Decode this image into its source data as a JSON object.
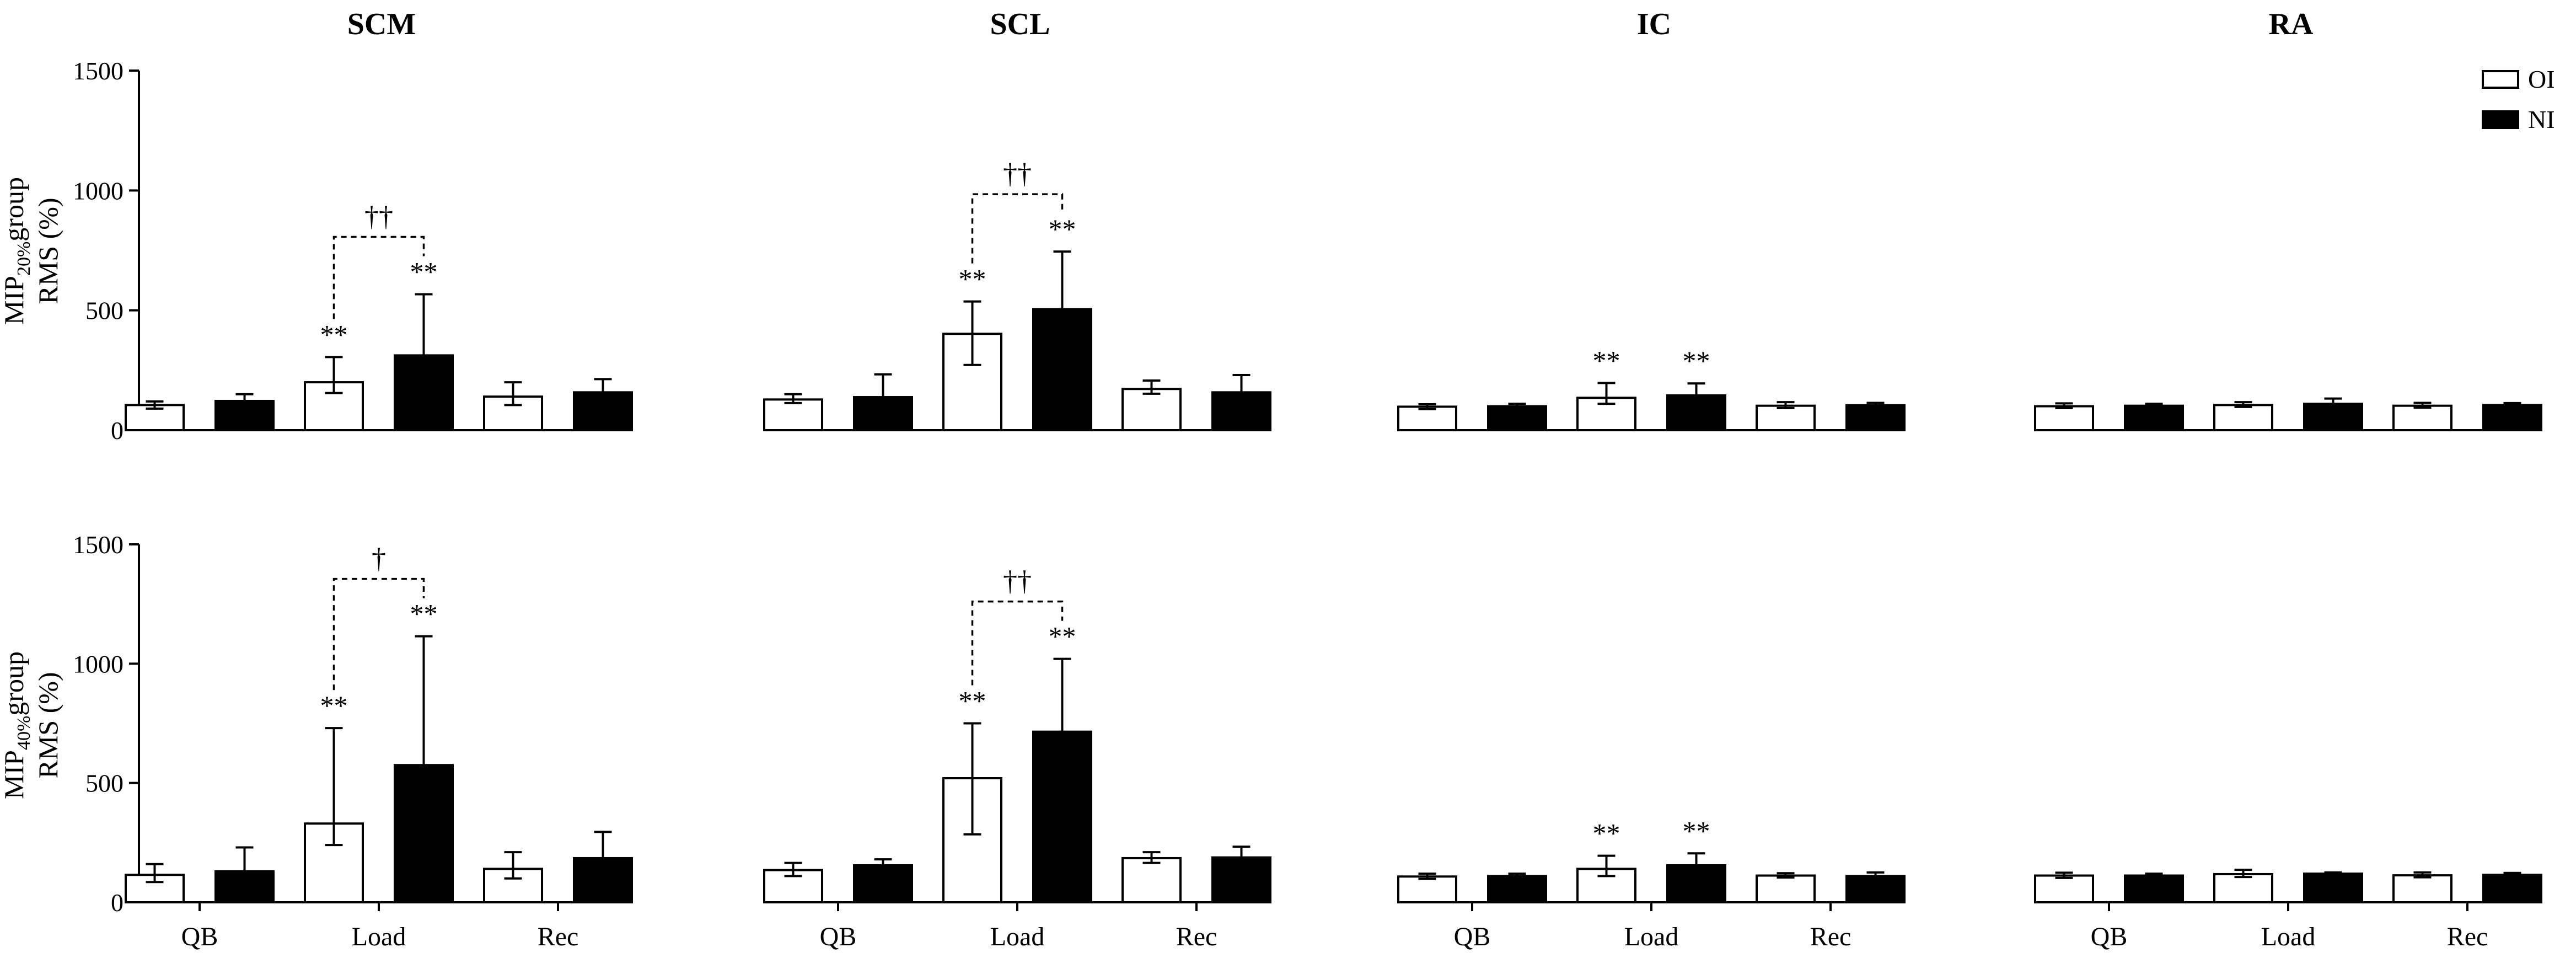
{
  "legend": [
    {
      "label": "OI",
      "color": "#ffffff"
    },
    {
      "label": "NI",
      "color": "#000000"
    }
  ],
  "panels": [
    "SCM",
    "SCL",
    "IC",
    "RA"
  ],
  "rows": [
    {
      "ylabel_main": "MIP",
      "ylabel_sub": "20%",
      "ylabel_rest": "group",
      "ylabel_line2": "RMS (%)"
    },
    {
      "ylabel_main": "MIP",
      "ylabel_sub": "40%",
      "ylabel_rest": "group",
      "ylabel_line2": "RMS (%)"
    }
  ],
  "chart_data": {
    "type": "bar",
    "categories": [
      "QB",
      "Load",
      "Rec"
    ],
    "series_names": [
      "OI",
      "NI"
    ],
    "ylim": [
      0,
      1500
    ],
    "yticks": [
      "0",
      "500",
      "1000",
      "1500"
    ],
    "grid": false,
    "legend_position": "top-right",
    "annotations": {
      "significance": "**",
      "single_dagger": "†",
      "double_dagger": "††"
    },
    "subplots": [
      {
        "row": 0,
        "muscle": "SCM",
        "OI": {
          "values": [
            105,
            200,
            140
          ],
          "err_plus": [
            15,
            105,
            60
          ],
          "err_minus": [
            15,
            45,
            35
          ]
        },
        "NI": {
          "values": [
            122,
            312,
            158
          ],
          "err_plus": [
            28,
            255,
            55
          ],
          "err_minus": [
            10,
            40,
            10
          ]
        },
        "stars_load": true,
        "dagger": "††"
      },
      {
        "row": 0,
        "muscle": "SCL",
        "OI": {
          "values": [
            128,
            402,
            172
          ],
          "err_plus": [
            22,
            135,
            35
          ],
          "err_minus": [
            15,
            130,
            20
          ]
        },
        "NI": {
          "values": [
            138,
            505,
            158
          ],
          "err_plus": [
            95,
            240,
            72
          ],
          "err_minus": [
            8,
            8,
            8
          ]
        },
        "stars_load": true,
        "dagger": "††"
      },
      {
        "row": 0,
        "muscle": "IC",
        "OI": {
          "values": [
            98,
            135,
            102
          ],
          "err_plus": [
            10,
            62,
            15
          ],
          "err_minus": [
            10,
            25,
            10
          ]
        },
        "NI": {
          "values": [
            100,
            145,
            104
          ],
          "err_plus": [
            10,
            50,
            10
          ],
          "err_minus": [
            5,
            5,
            5
          ]
        },
        "stars_load": true,
        "dagger": ""
      },
      {
        "row": 0,
        "muscle": "RA",
        "OI": {
          "values": [
            100,
            105,
            102
          ],
          "err_plus": [
            12,
            12,
            12
          ],
          "err_minus": [
            8,
            8,
            8
          ]
        },
        "NI": {
          "values": [
            102,
            110,
            105
          ],
          "err_plus": [
            8,
            22,
            8
          ],
          "err_minus": [
            5,
            5,
            5
          ]
        },
        "stars_load": false,
        "dagger": ""
      },
      {
        "row": 1,
        "muscle": "SCM",
        "OI": {
          "values": [
            115,
            330,
            140
          ],
          "err_plus": [
            45,
            400,
            70
          ],
          "err_minus": [
            30,
            90,
            40
          ]
        },
        "NI": {
          "values": [
            130,
            575,
            185
          ],
          "err_plus": [
            100,
            540,
            110
          ],
          "err_minus": [
            10,
            10,
            10
          ]
        },
        "stars_load": true,
        "dagger": "†"
      },
      {
        "row": 1,
        "muscle": "SCL",
        "OI": {
          "values": [
            135,
            520,
            185
          ],
          "err_plus": [
            30,
            230,
            25
          ],
          "err_minus": [
            25,
            235,
            20
          ]
        },
        "NI": {
          "values": [
            155,
            715,
            188
          ],
          "err_plus": [
            25,
            305,
            45
          ],
          "err_minus": [
            8,
            8,
            8
          ]
        },
        "stars_load": true,
        "dagger": "††"
      },
      {
        "row": 1,
        "muscle": "IC",
        "OI": {
          "values": [
            108,
            140,
            112
          ],
          "err_plus": [
            12,
            55,
            10
          ],
          "err_minus": [
            10,
            30,
            8
          ]
        },
        "NI": {
          "values": [
            110,
            155,
            110
          ],
          "err_plus": [
            10,
            50,
            15
          ],
          "err_minus": [
            5,
            5,
            5
          ]
        },
        "stars_load": true,
        "dagger": ""
      },
      {
        "row": 1,
        "muscle": "RA",
        "OI": {
          "values": [
            112,
            118,
            113
          ],
          "err_plus": [
            12,
            18,
            12
          ],
          "err_minus": [
            10,
            12,
            8
          ]
        },
        "NI": {
          "values": [
            112,
            120,
            115
          ],
          "err_plus": [
            8,
            5,
            8
          ],
          "err_minus": [
            5,
            5,
            5
          ]
        },
        "stars_load": false,
        "dagger": ""
      }
    ]
  }
}
